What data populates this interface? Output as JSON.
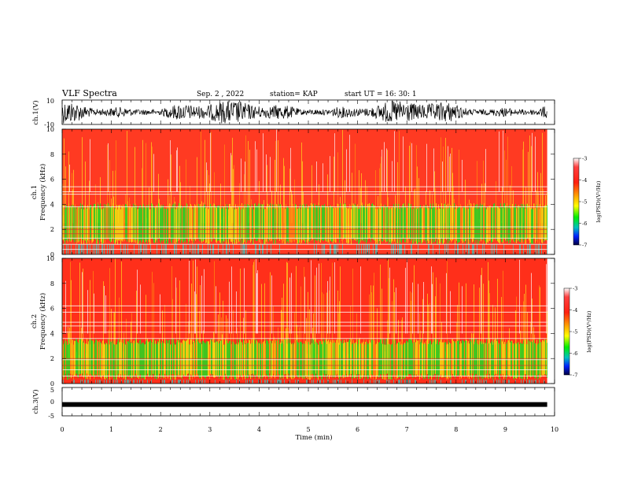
{
  "header": {
    "title": "VLF Spectra",
    "date": "Sep. 2 , 2022",
    "station": "station= KAP",
    "start_ut": "start UT =   16: 30: 1"
  },
  "chart_data": [
    {
      "type": "line",
      "panel": "ch1_waveform",
      "ylabel": "ch.1(V)",
      "ylim": [
        -10,
        10
      ],
      "xlim": [
        0,
        10
      ],
      "yticks": [
        "10",
        "-10"
      ],
      "description_of_signal": "dense noisy waveform spanning the full amplitude range"
    },
    {
      "type": "heatmap",
      "panel": "ch1_spectrogram",
      "ylabel": "Frequency (kHz)",
      "channel_label": "ch.1",
      "ylim": [
        0,
        10
      ],
      "yticks": [
        "10",
        "8",
        "6",
        "4",
        "2",
        "0"
      ],
      "xlim": [
        0,
        9.85
      ],
      "colorbar": {
        "label": "log(PSD)(V²/Hz)",
        "ticks": [
          "-3",
          "-4",
          "-5",
          "-6",
          "-7"
        ],
        "range": [
          -7,
          -3
        ]
      }
    },
    {
      "type": "heatmap",
      "panel": "ch2_spectrogram",
      "ylabel": "Frequency (kHz)",
      "channel_label": "ch.2",
      "ylim": [
        0,
        10
      ],
      "yticks": [
        "10",
        "8",
        "6",
        "4",
        "2",
        "0"
      ],
      "xlim": [
        0,
        9.85
      ],
      "colorbar": {
        "label": "log(PSD)(V²/Hz)",
        "ticks": [
          "-3",
          "-4",
          "-5",
          "-6",
          "-7"
        ],
        "range": [
          -7,
          -3
        ]
      }
    },
    {
      "type": "line",
      "panel": "ch3_waveform",
      "ylabel": "ch.3(V)",
      "ylim": [
        -5,
        5
      ],
      "xlim": [
        0,
        10
      ],
      "yticks": [
        "5",
        "0",
        "-5"
      ],
      "level": -1.0
    }
  ],
  "xaxis": {
    "label": "Time (min)",
    "ticks": [
      "0",
      "1",
      "2",
      "3",
      "4",
      "5",
      "6",
      "7",
      "8",
      "9",
      "10"
    ]
  },
  "colors": {
    "high": "#ff2a1a",
    "mid": "#f0e010",
    "low": "#22dd22",
    "lowest": "#0a12a0",
    "trace": "#000000"
  }
}
